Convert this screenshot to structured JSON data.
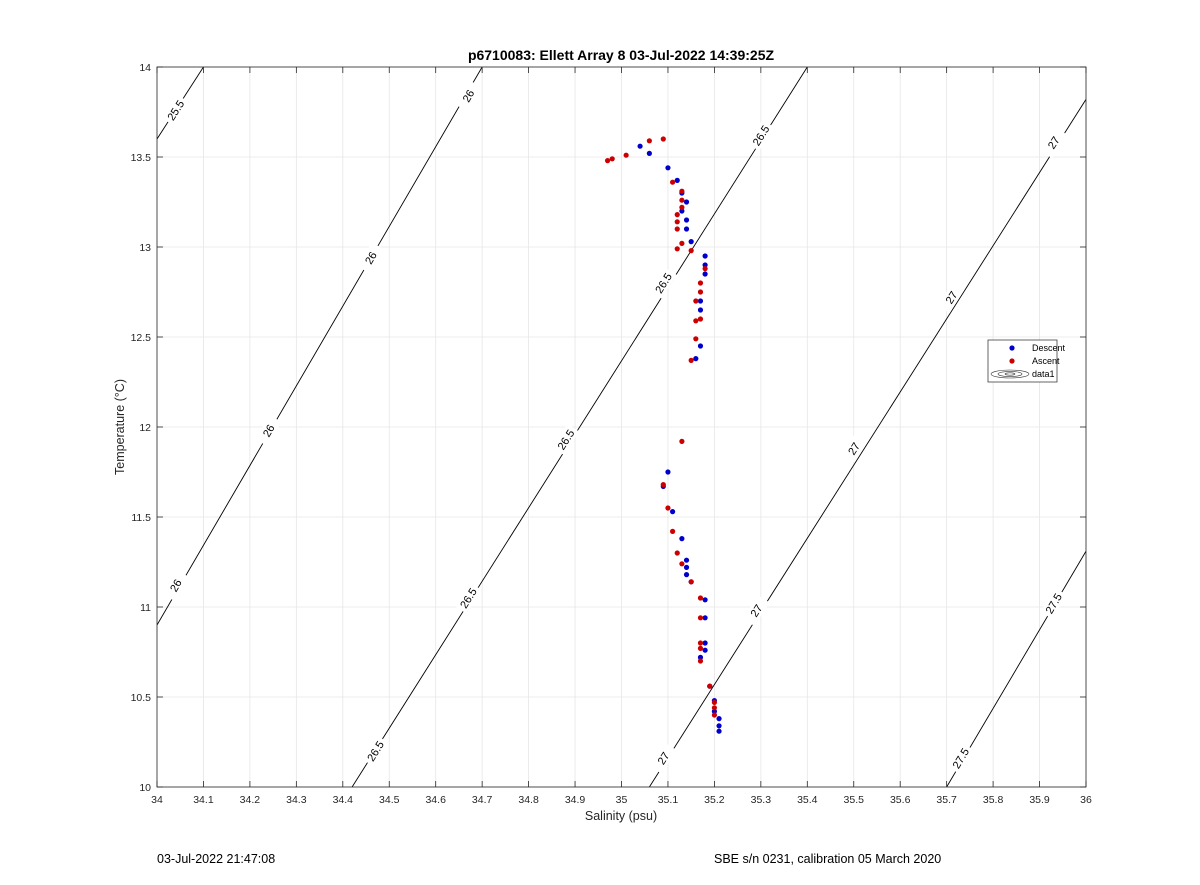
{
  "chart_data": {
    "type": "scatter",
    "title": "p6710083: Ellett Array 8 03-Jul-2022 14:39:25Z",
    "xlabel": "Salinity (psu)",
    "ylabel": "Temperature (°C)",
    "xlim": [
      34,
      36
    ],
    "ylim": [
      10,
      14
    ],
    "xticks": [
      34,
      34.1,
      34.2,
      34.3,
      34.4,
      34.5,
      34.6,
      34.7,
      34.8,
      34.9,
      35,
      35.1,
      35.2,
      35.3,
      35.4,
      35.5,
      35.6,
      35.7,
      35.8,
      35.9,
      36
    ],
    "yticks": [
      10,
      10.5,
      11,
      11.5,
      12,
      12.5,
      13,
      13.5,
      14
    ],
    "grid": true,
    "legend_position": "right",
    "contours": [
      {
        "label": "25.5",
        "points": [
          [
            34,
            13.6
          ],
          [
            34.1,
            14
          ]
        ],
        "label_positions": [
          [
            34.04,
            13.76
          ]
        ]
      },
      {
        "label": "26",
        "points": [
          [
            34,
            10.9
          ],
          [
            34.7,
            14
          ]
        ],
        "label_positions": [
          [
            34.04,
            11.12
          ],
          [
            34.24,
            11.98
          ],
          [
            34.46,
            12.94
          ],
          [
            34.67,
            13.84
          ]
        ]
      },
      {
        "label": "26.5",
        "points": [
          [
            34.42,
            10
          ],
          [
            35.4,
            14
          ]
        ],
        "label_positions": [
          [
            34.47,
            10.2
          ],
          [
            34.67,
            11.05
          ],
          [
            34.88,
            11.93
          ],
          [
            35.09,
            12.8
          ],
          [
            35.3,
            13.62
          ]
        ]
      },
      {
        "label": "27",
        "points": [
          [
            35.06,
            10
          ],
          [
            36,
            13.82
          ]
        ],
        "label_positions": [
          [
            35.09,
            10.16
          ],
          [
            35.29,
            10.98
          ],
          [
            35.5,
            11.88
          ],
          [
            35.71,
            12.72
          ],
          [
            35.93,
            13.58
          ]
        ]
      },
      {
        "label": "27.5",
        "points": [
          [
            35.7,
            10
          ],
          [
            36,
            11.31
          ]
        ],
        "label_positions": [
          [
            35.73,
            10.16
          ],
          [
            35.93,
            11.02
          ]
        ]
      }
    ],
    "series": [
      {
        "name": "Descent",
        "color": "#0000cc",
        "points": [
          [
            35.04,
            13.56
          ],
          [
            35.06,
            13.52
          ],
          [
            35.1,
            13.44
          ],
          [
            35.12,
            13.37
          ],
          [
            35.13,
            13.3
          ],
          [
            35.14,
            13.25
          ],
          [
            35.13,
            13.2
          ],
          [
            35.14,
            13.15
          ],
          [
            35.14,
            13.1
          ],
          [
            35.15,
            13.03
          ],
          [
            35.18,
            12.95
          ],
          [
            35.18,
            12.9
          ],
          [
            35.18,
            12.85
          ],
          [
            35.17,
            12.7
          ],
          [
            35.17,
            12.65
          ],
          [
            35.17,
            12.45
          ],
          [
            35.16,
            12.38
          ],
          [
            35.1,
            11.75
          ],
          [
            35.09,
            11.67
          ],
          [
            35.11,
            11.53
          ],
          [
            35.13,
            11.38
          ],
          [
            35.14,
            11.26
          ],
          [
            35.14,
            11.22
          ],
          [
            35.14,
            11.18
          ],
          [
            35.15,
            11.14
          ],
          [
            35.18,
            11.04
          ],
          [
            35.18,
            10.94
          ],
          [
            35.18,
            10.8
          ],
          [
            35.18,
            10.76
          ],
          [
            35.17,
            10.72
          ],
          [
            35.19,
            10.56
          ],
          [
            35.2,
            10.48
          ],
          [
            35.2,
            10.42
          ],
          [
            35.21,
            10.38
          ],
          [
            35.21,
            10.34
          ],
          [
            35.21,
            10.31
          ]
        ]
      },
      {
        "name": "Ascent",
        "color": "#cc0000",
        "points": [
          [
            34.97,
            13.48
          ],
          [
            34.98,
            13.49
          ],
          [
            35.01,
            13.51
          ],
          [
            35.06,
            13.59
          ],
          [
            35.09,
            13.6
          ],
          [
            35.11,
            13.36
          ],
          [
            35.13,
            13.31
          ],
          [
            35.13,
            13.26
          ],
          [
            35.13,
            13.22
          ],
          [
            35.12,
            13.18
          ],
          [
            35.12,
            13.14
          ],
          [
            35.12,
            13.1
          ],
          [
            35.13,
            13.02
          ],
          [
            35.12,
            12.99
          ],
          [
            35.15,
            12.98
          ],
          [
            35.18,
            12.88
          ],
          [
            35.17,
            12.8
          ],
          [
            35.17,
            12.75
          ],
          [
            35.16,
            12.7
          ],
          [
            35.17,
            12.6
          ],
          [
            35.16,
            12.59
          ],
          [
            35.16,
            12.49
          ],
          [
            35.15,
            12.37
          ],
          [
            35.13,
            11.92
          ],
          [
            35.09,
            11.68
          ],
          [
            35.1,
            11.55
          ],
          [
            35.11,
            11.42
          ],
          [
            35.12,
            11.3
          ],
          [
            35.13,
            11.24
          ],
          [
            35.15,
            11.14
          ],
          [
            35.17,
            11.05
          ],
          [
            35.17,
            10.94
          ],
          [
            35.17,
            10.8
          ],
          [
            35.17,
            10.77
          ],
          [
            35.17,
            10.7
          ],
          [
            35.19,
            10.56
          ],
          [
            35.2,
            10.47
          ],
          [
            35.2,
            10.44
          ],
          [
            35.2,
            10.4
          ]
        ]
      }
    ],
    "legend": [
      "Descent",
      "Ascent",
      "data1"
    ]
  },
  "footer": {
    "left": "03-Jul-2022 21:47:08",
    "right": "SBE s/n 0231, calibration 05 March 2020"
  }
}
